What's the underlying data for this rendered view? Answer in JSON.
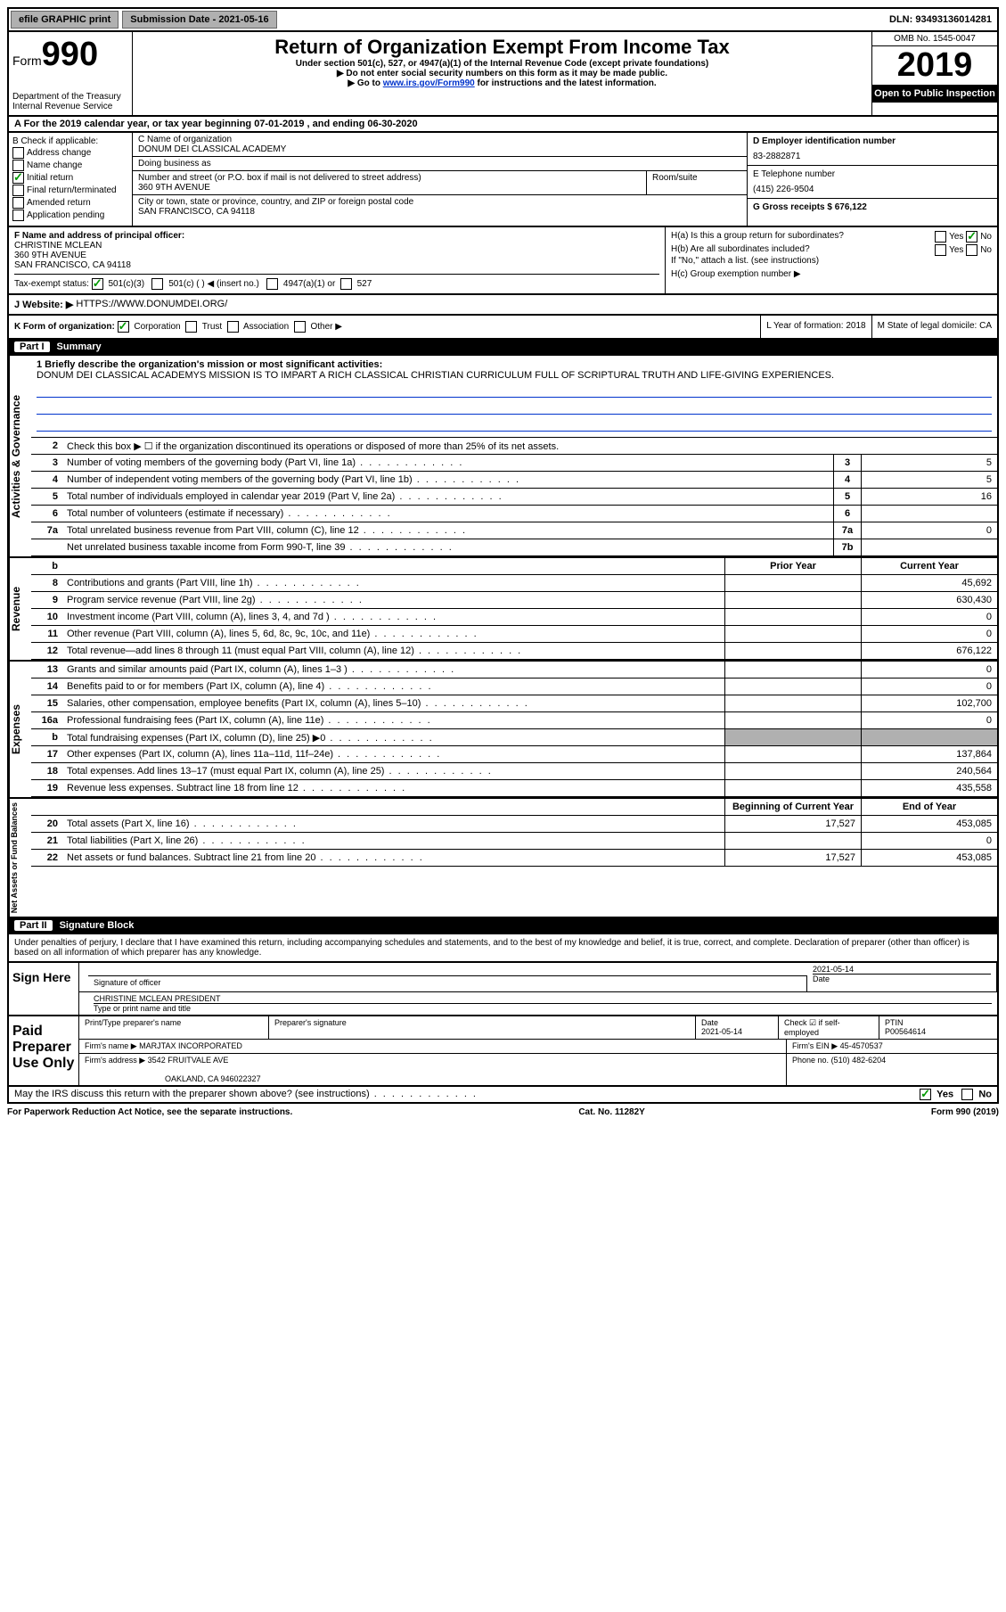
{
  "topbar": {
    "efile": "efile GRAPHIC print",
    "submission_label": "Submission Date - 2021-05-16",
    "dln": "DLN: 93493136014281"
  },
  "header": {
    "form_label": "Form",
    "form_num": "990",
    "dept": "Department of the Treasury",
    "irs": "Internal Revenue Service",
    "title": "Return of Organization Exempt From Income Tax",
    "sub1": "Under section 501(c), 527, or 4947(a)(1) of the Internal Revenue Code (except private foundations)",
    "sub2": "▶ Do not enter social security numbers on this form as it may be made public.",
    "sub3_pre": "▶ Go to ",
    "sub3_link": "www.irs.gov/Form990",
    "sub3_post": " for instructions and the latest information.",
    "omb": "OMB No. 1545-0047",
    "year": "2019",
    "open": "Open to Public Inspection"
  },
  "rowA": "A For the 2019 calendar year, or tax year beginning 07-01-2019   , and ending 06-30-2020",
  "colB": {
    "label": "B Check if applicable:",
    "opts": [
      "Address change",
      "Name change",
      "Initial return",
      "Final return/terminated",
      "Amended return",
      "Application pending"
    ],
    "checked_idx": 2
  },
  "colC": {
    "name_label": "C Name of organization",
    "name": "DONUM DEI CLASSICAL ACADEMY",
    "dba_label": "Doing business as",
    "dba": "",
    "addr_label": "Number and street (or P.O. box if mail is not delivered to street address)",
    "addr": "360 9TH AVENUE",
    "room_label": "Room/suite",
    "city_label": "City or town, state or province, country, and ZIP or foreign postal code",
    "city": "SAN FRANCISCO, CA  94118"
  },
  "colD": {
    "ein_label": "D Employer identification number",
    "ein": "83-2882871",
    "tel_label": "E Telephone number",
    "tel": "(415) 226-9504",
    "gross_label": "G Gross receipts $ 676,122"
  },
  "rowF": {
    "label": "F  Name and address of principal officer:",
    "name": "CHRISTINE MCLEAN",
    "addr1": "360 9TH AVENUE",
    "addr2": "SAN FRANCISCO, CA  94118",
    "tax_label": "Tax-exempt status:",
    "s1": "501(c)(3)",
    "s2": "501(c) (  ) ◀ (insert no.)",
    "s3": "4947(a)(1) or",
    "s4": "527"
  },
  "rowH": {
    "ha": "H(a)  Is this a group return for subordinates?",
    "hb": "H(b)  Are all subordinates included?",
    "hb_note": "If \"No,\" attach a list. (see instructions)",
    "hc": "H(c)  Group exemption number ▶",
    "yes": "Yes",
    "no": "No"
  },
  "rowJ": {
    "label": "J Website: ▶",
    "url": "HTTPS://WWW.DONUMDEI.ORG/"
  },
  "rowK": {
    "label": "K Form of organization:",
    "opts": [
      "Corporation",
      "Trust",
      "Association",
      "Other ▶"
    ],
    "l_label": "L Year of formation: 2018",
    "m_label": "M State of legal domicile: CA"
  },
  "part1": {
    "header_num": "Part I",
    "header_title": "Summary",
    "q1": "1 Briefly describe the organization's mission or most significant activities:",
    "mission": "DONUM DEI CLASSICAL ACADEMYS MISSION IS TO IMPART A RICH CLASSICAL CHRISTIAN CURRICULUM FULL OF SCRIPTURAL TRUTH AND LIFE-GIVING EXPERIENCES.",
    "q2": "Check this box ▶ ☐  if the organization discontinued its operations or disposed of more than 25% of its net assets.",
    "side_gov": "Activities & Governance",
    "side_rev": "Revenue",
    "side_exp": "Expenses",
    "side_net": "Net Assets or Fund Balances",
    "prior": "Prior Year",
    "current": "Current Year",
    "beg": "Beginning of Current Year",
    "end": "End of Year"
  },
  "lines_gov": [
    {
      "n": "3",
      "d": "Number of voting members of the governing body (Part VI, line 1a)",
      "b": "3",
      "v": "5"
    },
    {
      "n": "4",
      "d": "Number of independent voting members of the governing body (Part VI, line 1b)",
      "b": "4",
      "v": "5"
    },
    {
      "n": "5",
      "d": "Total number of individuals employed in calendar year 2019 (Part V, line 2a)",
      "b": "5",
      "v": "16"
    },
    {
      "n": "6",
      "d": "Total number of volunteers (estimate if necessary)",
      "b": "6",
      "v": ""
    },
    {
      "n": "7a",
      "d": "Total unrelated business revenue from Part VIII, column (C), line 12",
      "b": "7a",
      "v": "0"
    },
    {
      "n": "",
      "d": "Net unrelated business taxable income from Form 990-T, line 39",
      "b": "7b",
      "v": ""
    }
  ],
  "lines_rev": [
    {
      "n": "8",
      "d": "Contributions and grants (Part VIII, line 1h)",
      "p": "",
      "c": "45,692"
    },
    {
      "n": "9",
      "d": "Program service revenue (Part VIII, line 2g)",
      "p": "",
      "c": "630,430"
    },
    {
      "n": "10",
      "d": "Investment income (Part VIII, column (A), lines 3, 4, and 7d )",
      "p": "",
      "c": "0"
    },
    {
      "n": "11",
      "d": "Other revenue (Part VIII, column (A), lines 5, 6d, 8c, 9c, 10c, and 11e)",
      "p": "",
      "c": "0"
    },
    {
      "n": "12",
      "d": "Total revenue—add lines 8 through 11 (must equal Part VIII, column (A), line 12)",
      "p": "",
      "c": "676,122"
    }
  ],
  "lines_exp": [
    {
      "n": "13",
      "d": "Grants and similar amounts paid (Part IX, column (A), lines 1–3 )",
      "p": "",
      "c": "0"
    },
    {
      "n": "14",
      "d": "Benefits paid to or for members (Part IX, column (A), line 4)",
      "p": "",
      "c": "0"
    },
    {
      "n": "15",
      "d": "Salaries, other compensation, employee benefits (Part IX, column (A), lines 5–10)",
      "p": "",
      "c": "102,700"
    },
    {
      "n": "16a",
      "d": "Professional fundraising fees (Part IX, column (A), line 11e)",
      "p": "",
      "c": "0"
    },
    {
      "n": "b",
      "d": "Total fundraising expenses (Part IX, column (D), line 25) ▶0",
      "p": "gray",
      "c": "gray"
    },
    {
      "n": "17",
      "d": "Other expenses (Part IX, column (A), lines 11a–11d, 11f–24e)",
      "p": "",
      "c": "137,864"
    },
    {
      "n": "18",
      "d": "Total expenses. Add lines 13–17 (must equal Part IX, column (A), line 25)",
      "p": "",
      "c": "240,564"
    },
    {
      "n": "19",
      "d": "Revenue less expenses. Subtract line 18 from line 12",
      "p": "",
      "c": "435,558"
    }
  ],
  "lines_net": [
    {
      "n": "20",
      "d": "Total assets (Part X, line 16)",
      "p": "17,527",
      "c": "453,085"
    },
    {
      "n": "21",
      "d": "Total liabilities (Part X, line 26)",
      "p": "",
      "c": "0"
    },
    {
      "n": "22",
      "d": "Net assets or fund balances. Subtract line 21 from line 20",
      "p": "17,527",
      "c": "453,085"
    }
  ],
  "part2": {
    "header_num": "Part II",
    "header_title": "Signature Block",
    "decl": "Under penalties of perjury, I declare that I have examined this return, including accompanying schedules and statements, and to the best of my knowledge and belief, it is true, correct, and complete. Declaration of preparer (other than officer) is based on all information of which preparer has any knowledge."
  },
  "sign": {
    "here": "Sign Here",
    "sig_label": "Signature of officer",
    "date": "2021-05-14",
    "date_label": "Date",
    "name": "CHRISTINE MCLEAN  PRESIDENT",
    "name_label": "Type or print name and title"
  },
  "paid": {
    "label": "Paid Preparer Use Only",
    "prep_name_label": "Print/Type preparer's name",
    "prep_sig_label": "Preparer's signature",
    "prep_date_label": "Date",
    "prep_date": "2021-05-14",
    "check_label": "Check ☑ if self-employed",
    "ptin_label": "PTIN",
    "ptin": "P00564614",
    "firm_name_label": "Firm's name   ▶",
    "firm_name": "MARJTAX INCORPORATED",
    "firm_ein_label": "Firm's EIN ▶",
    "firm_ein": "45-4570537",
    "firm_addr_label": "Firm's address ▶",
    "firm_addr1": "3542 FRUITVALE AVE",
    "firm_addr2": "OAKLAND, CA  946022327",
    "phone_label": "Phone no.",
    "phone": "(510) 482-6204"
  },
  "discuss": "May the IRS discuss this return with the preparer shown above? (see instructions)",
  "footer": {
    "l": "For Paperwork Reduction Act Notice, see the separate instructions.",
    "m": "Cat. No. 11282Y",
    "r": "Form 990 (2019)"
  }
}
